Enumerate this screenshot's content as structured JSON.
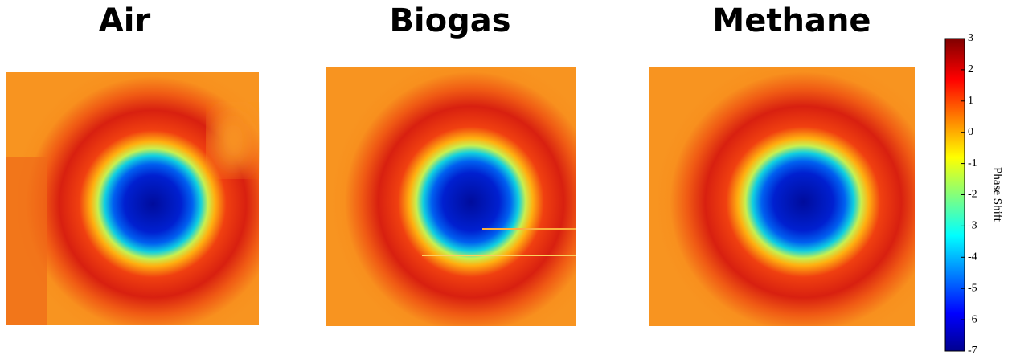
{
  "panels": [
    {
      "title": "Air"
    },
    {
      "title": "Biogas"
    },
    {
      "title": "Methane"
    }
  ],
  "colorbar": {
    "label": "Phase Shift",
    "ylim": [
      -7,
      3
    ],
    "yticks": [
      -7,
      -6,
      -5,
      -4,
      -3,
      -2,
      -1,
      0,
      1,
      2,
      3
    ]
  }
}
